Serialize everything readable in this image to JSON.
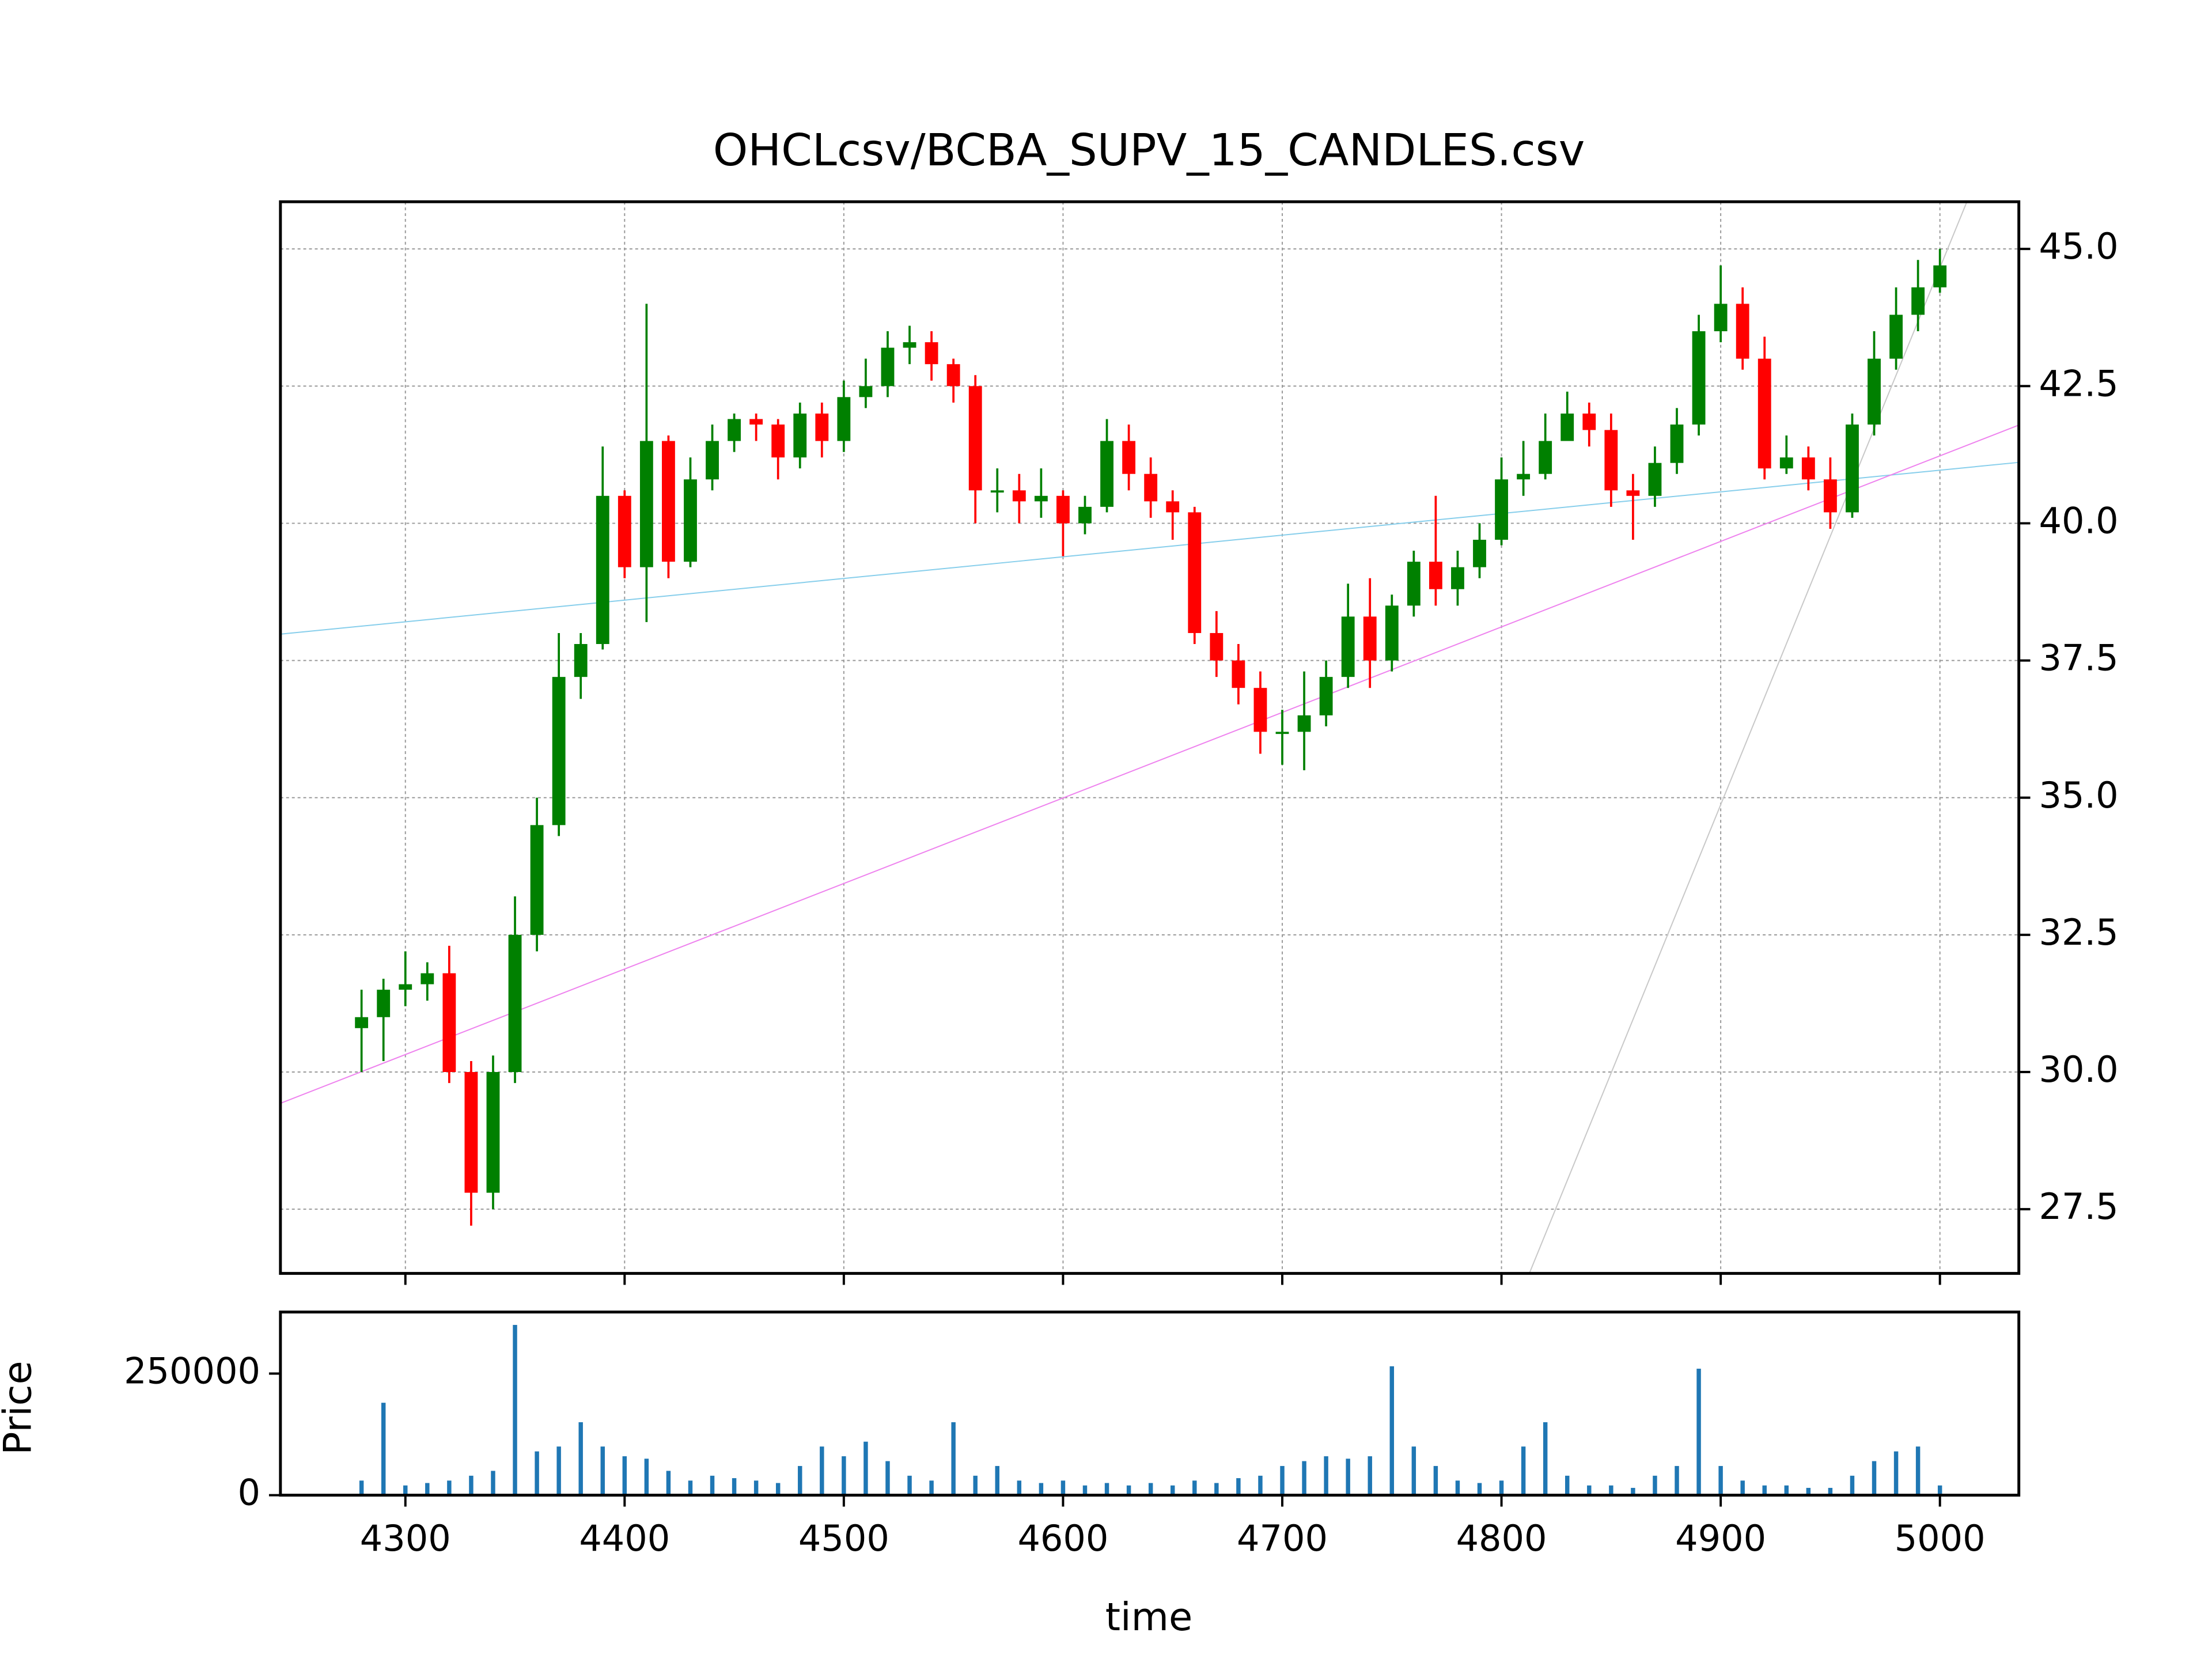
{
  "chart_data": [
    {
      "type": "candlestick",
      "title": "OHCLcsv/BCBA_SUPV_15_CANDLES.csv",
      "x": [
        4280,
        4290,
        4300,
        4310,
        4320,
        4330,
        4340,
        4350,
        4360,
        4370,
        4380,
        4390,
        4400,
        4410,
        4420,
        4430,
        4440,
        4450,
        4460,
        4470,
        4480,
        4490,
        4500,
        4510,
        4520,
        4530,
        4540,
        4550,
        4560,
        4570,
        4580,
        4590,
        4600,
        4610,
        4620,
        4630,
        4640,
        4650,
        4660,
        4670,
        4680,
        4690,
        4700,
        4710,
        4720,
        4730,
        4740,
        4750,
        4760,
        4770,
        4780,
        4790,
        4800,
        4810,
        4820,
        4830,
        4840,
        4850,
        4860,
        4870,
        4880,
        4890,
        4900,
        4910,
        4920,
        4930,
        4940,
        4950,
        4960,
        4970,
        4980,
        4990,
        5000
      ],
      "open": [
        30.8,
        31.0,
        31.5,
        31.6,
        31.8,
        30.0,
        27.8,
        30.0,
        32.5,
        34.5,
        37.2,
        37.8,
        40.5,
        39.2,
        41.5,
        39.3,
        40.8,
        41.5,
        41.9,
        41.8,
        41.2,
        42.0,
        41.5,
        42.3,
        42.5,
        43.2,
        43.3,
        42.9,
        42.5,
        40.6,
        40.6,
        40.4,
        40.5,
        40.0,
        40.3,
        41.5,
        40.9,
        40.4,
        40.2,
        38.0,
        37.5,
        37.0,
        36.2,
        36.2,
        36.5,
        37.2,
        38.3,
        37.5,
        38.5,
        39.3,
        38.8,
        39.2,
        39.7,
        40.8,
        40.9,
        41.5,
        42.0,
        41.7,
        40.6,
        40.5,
        41.1,
        41.8,
        43.5,
        44.0,
        43.0,
        41.0,
        41.2,
        40.8,
        40.2,
        41.8,
        43.0,
        43.8,
        44.3
      ],
      "high": [
        31.5,
        31.7,
        32.2,
        32.0,
        32.3,
        30.2,
        30.3,
        33.2,
        35.0,
        38.0,
        38.0,
        41.4,
        40.6,
        44.0,
        41.6,
        41.2,
        41.8,
        42.0,
        42.0,
        41.9,
        42.2,
        42.2,
        42.6,
        43.0,
        43.5,
        43.6,
        43.5,
        43.0,
        42.7,
        41.0,
        40.9,
        41.0,
        40.6,
        40.5,
        41.9,
        41.8,
        41.2,
        40.6,
        40.3,
        38.4,
        37.8,
        37.3,
        36.6,
        37.3,
        37.5,
        38.9,
        39.0,
        38.7,
        39.5,
        40.5,
        39.5,
        40.0,
        41.2,
        41.5,
        42.0,
        42.4,
        42.2,
        42.0,
        40.9,
        41.4,
        42.1,
        43.8,
        44.7,
        44.3,
        43.4,
        41.6,
        41.4,
        41.2,
        42.0,
        43.5,
        44.3,
        44.8,
        45.0
      ],
      "low": [
        30.0,
        30.2,
        31.2,
        31.3,
        29.8,
        27.2,
        27.5,
        29.8,
        32.2,
        34.3,
        36.8,
        37.7,
        39.0,
        38.2,
        39.0,
        39.2,
        40.6,
        41.3,
        41.5,
        40.8,
        41.0,
        41.2,
        41.3,
        42.1,
        42.3,
        42.9,
        42.6,
        42.2,
        40.0,
        40.2,
        40.0,
        40.1,
        39.4,
        39.8,
        40.2,
        40.6,
        40.1,
        39.7,
        37.8,
        37.2,
        36.7,
        35.8,
        35.6,
        35.5,
        36.3,
        37.0,
        37.0,
        37.3,
        38.3,
        38.5,
        38.5,
        39.0,
        39.6,
        40.5,
        40.8,
        41.6,
        41.4,
        40.3,
        39.7,
        40.3,
        40.9,
        41.6,
        43.3,
        42.8,
        40.8,
        40.9,
        40.6,
        39.9,
        40.1,
        41.6,
        42.8,
        43.5,
        44.2
      ],
      "close": [
        31.0,
        31.5,
        31.6,
        31.8,
        30.0,
        27.8,
        30.0,
        32.5,
        34.5,
        37.2,
        37.8,
        40.5,
        39.2,
        41.5,
        39.3,
        40.8,
        41.5,
        41.9,
        41.8,
        41.2,
        42.0,
        41.5,
        42.3,
        42.5,
        43.2,
        43.3,
        42.9,
        42.5,
        40.6,
        40.6,
        40.4,
        40.5,
        40.0,
        40.3,
        41.5,
        40.9,
        40.4,
        40.2,
        38.0,
        37.5,
        37.0,
        36.2,
        36.2,
        36.5,
        37.2,
        38.3,
        37.5,
        38.5,
        39.3,
        38.8,
        39.2,
        39.7,
        40.8,
        40.9,
        41.5,
        42.0,
        41.7,
        40.6,
        40.5,
        41.1,
        41.8,
        43.5,
        44.0,
        43.0,
        41.0,
        41.2,
        40.8,
        40.2,
        41.8,
        43.0,
        43.8,
        44.3,
        44.7
      ],
      "up_color": "green",
      "down_color": "red",
      "series": [
        {
          "color": "#87ceeb",
          "x": [
            4243,
            5036
          ],
          "values": [
            37.98,
            41.11
          ]
        },
        {
          "color": "#ee82ee",
          "x": [
            4243,
            5036
          ],
          "values": [
            29.43,
            41.79
          ]
        },
        {
          "color": "#c8c8c8",
          "x": [
            4812.7,
            5012.3
          ],
          "values": [
            26.33,
            45.86
          ]
        }
      ],
      "xlim": [
        4243,
        5036
      ],
      "ylim": [
        26.33,
        45.86
      ],
      "yticks": [
        27.5,
        {
          "value": 30,
          "label": "30.0"
        },
        32.5,
        {
          "value": 35,
          "label": "35.0"
        },
        37.5,
        {
          "value": 40,
          "label": "40.0"
        },
        42.5,
        {
          "value": 45,
          "label": "45.0"
        }
      ],
      "y_axis_side": "right",
      "grid": true
    },
    {
      "type": "bar",
      "xlabel": "time",
      "ylabel": "Price",
      "x": [
        4280,
        4290,
        4300,
        4310,
        4320,
        4330,
        4340,
        4350,
        4360,
        4370,
        4380,
        4390,
        4400,
        4410,
        4420,
        4430,
        4440,
        4450,
        4460,
        4470,
        4480,
        4490,
        4500,
        4510,
        4520,
        4530,
        4540,
        4550,
        4560,
        4570,
        4580,
        4590,
        4600,
        4610,
        4620,
        4630,
        4640,
        4650,
        4660,
        4670,
        4680,
        4690,
        4700,
        4710,
        4720,
        4730,
        4740,
        4750,
        4760,
        4770,
        4780,
        4790,
        4800,
        4810,
        4820,
        4830,
        4840,
        4850,
        4860,
        4870,
        4880,
        4890,
        4900,
        4910,
        4920,
        4930,
        4940,
        4950,
        4960,
        4970,
        4980,
        4990,
        5000
      ],
      "values": [
        30000,
        190000,
        20000,
        25000,
        30000,
        40000,
        50000,
        350000,
        90000,
        100000,
        150000,
        100000,
        80000,
        75000,
        50000,
        30000,
        40000,
        35000,
        30000,
        25000,
        60000,
        100000,
        80000,
        110000,
        70000,
        40000,
        30000,
        150000,
        40000,
        60000,
        30000,
        25000,
        30000,
        20000,
        25000,
        20000,
        25000,
        20000,
        30000,
        25000,
        35000,
        40000,
        60000,
        70000,
        80000,
        75000,
        80000,
        265000,
        100000,
        60000,
        30000,
        25000,
        30000,
        100000,
        150000,
        40000,
        20000,
        20000,
        15000,
        40000,
        60000,
        260000,
        60000,
        30000,
        20000,
        20000,
        15000,
        15000,
        40000,
        70000,
        90000,
        100000,
        20000
      ],
      "color": "#1f77b4",
      "xlim": [
        4243,
        5036
      ],
      "ylim": [
        0,
        376500
      ],
      "xticks": [
        4300,
        4400,
        4500,
        4600,
        4700,
        4800,
        4900,
        5000
      ],
      "yticks": [
        0,
        250000
      ]
    }
  ]
}
